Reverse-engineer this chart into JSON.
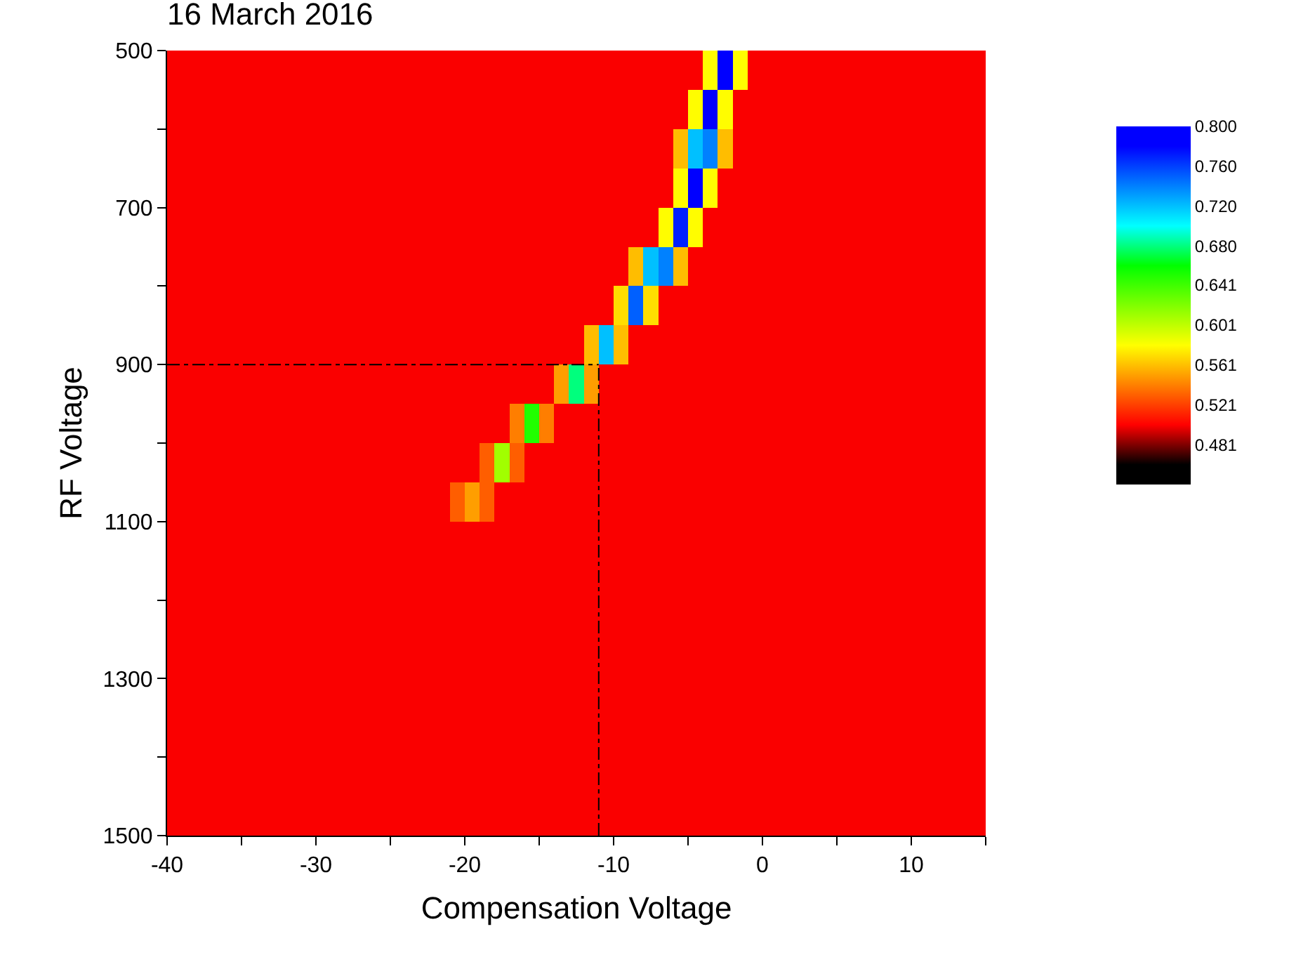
{
  "chart_data": {
    "type": "heatmap",
    "title": "16 March 2016",
    "xlabel": "Compensation Voltage",
    "ylabel": "RF Voltage",
    "x": [
      -39.5,
      -38.5,
      -37.5,
      -36.5,
      -35.5,
      -34.5,
      -33.5,
      -32.5,
      -31.5,
      -30.5,
      -29.5,
      -28.5,
      -27.5,
      -26.5,
      -25.5,
      -24.5,
      -23.5,
      -22.5,
      -21.5,
      -20.5,
      -19.5,
      -18.5,
      -17.5,
      -16.5,
      -15.5,
      -14.5,
      -13.5,
      -12.5,
      -11.5,
      -10.5,
      -9.5,
      -8.5,
      -7.5,
      -6.5,
      -5.5,
      -4.5,
      -3.5,
      -2.5,
      -1.5,
      -0.5,
      0.5,
      1.5,
      2.5,
      3.5,
      4.5,
      5.5,
      6.5,
      7.5,
      8.5,
      9.5,
      10.5,
      11.5,
      12.5,
      13.5,
      14.5
    ],
    "y": [
      525,
      575,
      625,
      675,
      725,
      775,
      825,
      875,
      925,
      975,
      1025,
      1075,
      1125,
      1175,
      1225,
      1275,
      1325,
      1375,
      1425,
      1475
    ],
    "xlim": [
      -40,
      15
    ],
    "xticks": [
      -40,
      {
        "value": -35,
        "label": null
      },
      -30,
      {
        "value": -25,
        "label": null
      },
      -20,
      {
        "value": -15,
        "label": null
      },
      -10,
      {
        "value": -5,
        "label": null
      },
      0,
      {
        "value": 5,
        "label": null
      },
      10,
      {
        "value": 15,
        "label": null
      }
    ],
    "ylim": [
      1500,
      500
    ],
    "yticks": [
      500,
      {
        "value": 600,
        "label": null
      },
      700,
      {
        "value": 800,
        "label": null
      },
      900,
      {
        "value": 1000,
        "label": null
      },
      1100,
      {
        "value": 1200,
        "label": null
      },
      1300,
      {
        "value": 1400,
        "label": null
      },
      1500
    ],
    "clim": [
      0.441,
      0.8
    ],
    "cticks": [
      0.481,
      0.521,
      0.561,
      0.601,
      0.641,
      {
        "value": 0.68,
        "label": "0.680"
      },
      {
        "value": 0.72,
        "label": "0.720"
      },
      {
        "value": 0.76,
        "label": "0.760"
      },
      {
        "value": 0.8,
        "label": "0.800"
      }
    ],
    "colors": [
      "#000000",
      "#ff0000",
      "#ff8000",
      "#ffff00",
      "#80ff00",
      "#00ff00",
      "#00ffff",
      "#0080ff",
      "#0000ff"
    ],
    "ref_lines": [
      {
        "axis": "y",
        "value": 900,
        "color": "#000000"
      },
      {
        "axis": "x",
        "value": -11,
        "color": "#000000"
      }
    ],
    "cells": [
      [
        0.5,
        0.5,
        0.5,
        0.5,
        0.5,
        0.5,
        0.5,
        0.5,
        0.5,
        0.5,
        0.5,
        0.5,
        0.5,
        0.5,
        0.5,
        0.5,
        0.5,
        0.5,
        0.5,
        0.5,
        0.5,
        0.5,
        0.5,
        0.5,
        0.5,
        0.5,
        0.5,
        0.5,
        0.5,
        0.5,
        0.5,
        0.5,
        0.5,
        0.5,
        0.5,
        0.5,
        0.58,
        0.78,
        0.58,
        0.5,
        0.5,
        0.5,
        0.5,
        0.5,
        0.5,
        0.5,
        0.5,
        0.5,
        0.5,
        0.5,
        0.5,
        0.5,
        0.5,
        0.5,
        0.5
      ],
      [
        0.5,
        0.5,
        0.5,
        0.5,
        0.5,
        0.5,
        0.5,
        0.5,
        0.5,
        0.5,
        0.5,
        0.5,
        0.5,
        0.5,
        0.5,
        0.5,
        0.5,
        0.5,
        0.5,
        0.5,
        0.5,
        0.5,
        0.5,
        0.5,
        0.5,
        0.5,
        0.5,
        0.5,
        0.5,
        0.5,
        0.5,
        0.5,
        0.5,
        0.5,
        0.5,
        0.58,
        0.78,
        0.58,
        0.5,
        0.5,
        0.5,
        0.5,
        0.5,
        0.5,
        0.5,
        0.5,
        0.5,
        0.5,
        0.5,
        0.5,
        0.5,
        0.5,
        0.5,
        0.5,
        0.5
      ],
      [
        0.5,
        0.5,
        0.5,
        0.5,
        0.5,
        0.5,
        0.5,
        0.5,
        0.5,
        0.5,
        0.5,
        0.5,
        0.5,
        0.5,
        0.5,
        0.5,
        0.5,
        0.5,
        0.5,
        0.5,
        0.5,
        0.5,
        0.5,
        0.5,
        0.5,
        0.5,
        0.5,
        0.5,
        0.5,
        0.5,
        0.5,
        0.5,
        0.5,
        0.5,
        0.56,
        0.72,
        0.74,
        0.56,
        0.5,
        0.5,
        0.5,
        0.5,
        0.5,
        0.5,
        0.5,
        0.5,
        0.5,
        0.5,
        0.5,
        0.5,
        0.5,
        0.5,
        0.5,
        0.5,
        0.5
      ],
      [
        0.5,
        0.5,
        0.5,
        0.5,
        0.5,
        0.5,
        0.5,
        0.5,
        0.5,
        0.5,
        0.5,
        0.5,
        0.5,
        0.5,
        0.5,
        0.5,
        0.5,
        0.5,
        0.5,
        0.5,
        0.5,
        0.5,
        0.5,
        0.5,
        0.5,
        0.5,
        0.5,
        0.5,
        0.5,
        0.5,
        0.5,
        0.5,
        0.5,
        0.5,
        0.58,
        0.78,
        0.58,
        0.5,
        0.5,
        0.5,
        0.5,
        0.5,
        0.5,
        0.5,
        0.5,
        0.5,
        0.5,
        0.5,
        0.5,
        0.5,
        0.5,
        0.5,
        0.5,
        0.5,
        0.5
      ],
      [
        0.5,
        0.5,
        0.5,
        0.5,
        0.5,
        0.5,
        0.5,
        0.5,
        0.5,
        0.5,
        0.5,
        0.5,
        0.5,
        0.5,
        0.5,
        0.5,
        0.5,
        0.5,
        0.5,
        0.5,
        0.5,
        0.5,
        0.5,
        0.5,
        0.5,
        0.5,
        0.5,
        0.5,
        0.5,
        0.5,
        0.5,
        0.5,
        0.5,
        0.58,
        0.77,
        0.58,
        0.5,
        0.5,
        0.5,
        0.5,
        0.5,
        0.5,
        0.5,
        0.5,
        0.5,
        0.5,
        0.5,
        0.5,
        0.5,
        0.5,
        0.5,
        0.5,
        0.5,
        0.5,
        0.5
      ],
      [
        0.5,
        0.5,
        0.5,
        0.5,
        0.5,
        0.5,
        0.5,
        0.5,
        0.5,
        0.5,
        0.5,
        0.5,
        0.5,
        0.5,
        0.5,
        0.5,
        0.5,
        0.5,
        0.5,
        0.5,
        0.5,
        0.5,
        0.5,
        0.5,
        0.5,
        0.5,
        0.5,
        0.5,
        0.5,
        0.5,
        0.5,
        0.56,
        0.72,
        0.74,
        0.56,
        0.5,
        0.5,
        0.5,
        0.5,
        0.5,
        0.5,
        0.5,
        0.5,
        0.5,
        0.5,
        0.5,
        0.5,
        0.5,
        0.5,
        0.5,
        0.5,
        0.5,
        0.5,
        0.5,
        0.5
      ],
      [
        0.5,
        0.5,
        0.5,
        0.5,
        0.5,
        0.5,
        0.5,
        0.5,
        0.5,
        0.5,
        0.5,
        0.5,
        0.5,
        0.5,
        0.5,
        0.5,
        0.5,
        0.5,
        0.5,
        0.5,
        0.5,
        0.5,
        0.5,
        0.5,
        0.5,
        0.5,
        0.5,
        0.5,
        0.5,
        0.5,
        0.57,
        0.75,
        0.57,
        0.5,
        0.5,
        0.5,
        0.5,
        0.5,
        0.5,
        0.5,
        0.5,
        0.5,
        0.5,
        0.5,
        0.5,
        0.5,
        0.5,
        0.5,
        0.5,
        0.5,
        0.5,
        0.5,
        0.5,
        0.5,
        0.5
      ],
      [
        0.5,
        0.5,
        0.5,
        0.5,
        0.5,
        0.5,
        0.5,
        0.5,
        0.5,
        0.5,
        0.5,
        0.5,
        0.5,
        0.5,
        0.5,
        0.5,
        0.5,
        0.5,
        0.5,
        0.5,
        0.5,
        0.5,
        0.5,
        0.5,
        0.5,
        0.5,
        0.5,
        0.5,
        0.56,
        0.72,
        0.56,
        0.5,
        0.5,
        0.5,
        0.5,
        0.5,
        0.5,
        0.5,
        0.5,
        0.5,
        0.5,
        0.5,
        0.5,
        0.5,
        0.5,
        0.5,
        0.5,
        0.5,
        0.5,
        0.5,
        0.5,
        0.5,
        0.5,
        0.5,
        0.5
      ],
      [
        0.5,
        0.5,
        0.5,
        0.5,
        0.5,
        0.5,
        0.5,
        0.5,
        0.5,
        0.5,
        0.5,
        0.5,
        0.5,
        0.5,
        0.5,
        0.5,
        0.5,
        0.5,
        0.5,
        0.5,
        0.5,
        0.5,
        0.5,
        0.5,
        0.5,
        0.5,
        0.55,
        0.68,
        0.55,
        0.5,
        0.5,
        0.5,
        0.5,
        0.5,
        0.5,
        0.5,
        0.5,
        0.5,
        0.5,
        0.5,
        0.5,
        0.5,
        0.5,
        0.5,
        0.5,
        0.5,
        0.5,
        0.5,
        0.5,
        0.5,
        0.5,
        0.5,
        0.5,
        0.5,
        0.5
      ],
      [
        0.5,
        0.5,
        0.5,
        0.5,
        0.5,
        0.5,
        0.5,
        0.5,
        0.5,
        0.5,
        0.5,
        0.5,
        0.5,
        0.5,
        0.5,
        0.5,
        0.5,
        0.5,
        0.5,
        0.5,
        0.5,
        0.5,
        0.5,
        0.54,
        0.65,
        0.54,
        0.5,
        0.5,
        0.5,
        0.5,
        0.5,
        0.5,
        0.5,
        0.5,
        0.5,
        0.5,
        0.5,
        0.5,
        0.5,
        0.5,
        0.5,
        0.5,
        0.5,
        0.5,
        0.5,
        0.5,
        0.5,
        0.5,
        0.5,
        0.5,
        0.5,
        0.5,
        0.5,
        0.5,
        0.5
      ],
      [
        0.5,
        0.5,
        0.5,
        0.5,
        0.5,
        0.5,
        0.5,
        0.5,
        0.5,
        0.5,
        0.5,
        0.5,
        0.5,
        0.5,
        0.5,
        0.5,
        0.5,
        0.5,
        0.5,
        0.5,
        0.5,
        0.53,
        0.61,
        0.53,
        0.5,
        0.5,
        0.5,
        0.5,
        0.5,
        0.5,
        0.5,
        0.5,
        0.5,
        0.5,
        0.5,
        0.5,
        0.5,
        0.5,
        0.5,
        0.5,
        0.5,
        0.5,
        0.5,
        0.5,
        0.5,
        0.5,
        0.5,
        0.5,
        0.5,
        0.5,
        0.5,
        0.5,
        0.5,
        0.5,
        0.5
      ],
      [
        0.5,
        0.5,
        0.5,
        0.5,
        0.5,
        0.5,
        0.5,
        0.5,
        0.5,
        0.5,
        0.5,
        0.5,
        0.5,
        0.5,
        0.5,
        0.5,
        0.5,
        0.5,
        0.5,
        0.53,
        0.55,
        0.53,
        0.5,
        0.5,
        0.5,
        0.5,
        0.5,
        0.5,
        0.5,
        0.5,
        0.5,
        0.5,
        0.5,
        0.5,
        0.5,
        0.5,
        0.5,
        0.5,
        0.5,
        0.5,
        0.5,
        0.5,
        0.5,
        0.5,
        0.5,
        0.5,
        0.5,
        0.5,
        0.5,
        0.5,
        0.5,
        0.5,
        0.5,
        0.5,
        0.5
      ],
      [
        0.5,
        0.5,
        0.5,
        0.5,
        0.5,
        0.5,
        0.5,
        0.5,
        0.5,
        0.5,
        0.5,
        0.5,
        0.5,
        0.5,
        0.5,
        0.5,
        0.5,
        0.5,
        0.5,
        0.5,
        0.5,
        0.5,
        0.5,
        0.5,
        0.5,
        0.5,
        0.5,
        0.5,
        0.5,
        0.5,
        0.5,
        0.5,
        0.5,
        0.5,
        0.5,
        0.5,
        0.5,
        0.5,
        0.5,
        0.5,
        0.5,
        0.5,
        0.5,
        0.5,
        0.5,
        0.5,
        0.5,
        0.5,
        0.5,
        0.5,
        0.5,
        0.5,
        0.5,
        0.5,
        0.5
      ],
      [
        0.5,
        0.5,
        0.5,
        0.5,
        0.5,
        0.5,
        0.5,
        0.5,
        0.5,
        0.5,
        0.5,
        0.5,
        0.5,
        0.5,
        0.5,
        0.5,
        0.5,
        0.5,
        0.5,
        0.5,
        0.5,
        0.5,
        0.5,
        0.5,
        0.5,
        0.5,
        0.5,
        0.5,
        0.5,
        0.5,
        0.5,
        0.5,
        0.5,
        0.5,
        0.5,
        0.5,
        0.5,
        0.5,
        0.5,
        0.5,
        0.5,
        0.5,
        0.5,
        0.5,
        0.5,
        0.5,
        0.5,
        0.5,
        0.5,
        0.5,
        0.5,
        0.5,
        0.5,
        0.5,
        0.5
      ],
      [
        0.5,
        0.5,
        0.5,
        0.5,
        0.5,
        0.5,
        0.5,
        0.5,
        0.5,
        0.5,
        0.5,
        0.5,
        0.5,
        0.5,
        0.5,
        0.5,
        0.5,
        0.5,
        0.5,
        0.5,
        0.5,
        0.5,
        0.5,
        0.5,
        0.5,
        0.5,
        0.5,
        0.5,
        0.5,
        0.5,
        0.5,
        0.5,
        0.5,
        0.5,
        0.5,
        0.5,
        0.5,
        0.5,
        0.5,
        0.5,
        0.5,
        0.5,
        0.5,
        0.5,
        0.5,
        0.5,
        0.5,
        0.5,
        0.5,
        0.5,
        0.5,
        0.5,
        0.5,
        0.5,
        0.5
      ],
      [
        0.5,
        0.5,
        0.5,
        0.5,
        0.5,
        0.5,
        0.5,
        0.5,
        0.5,
        0.5,
        0.5,
        0.5,
        0.5,
        0.5,
        0.5,
        0.5,
        0.5,
        0.5,
        0.5,
        0.5,
        0.5,
        0.5,
        0.5,
        0.5,
        0.5,
        0.5,
        0.5,
        0.5,
        0.5,
        0.5,
        0.5,
        0.5,
        0.5,
        0.5,
        0.5,
        0.5,
        0.5,
        0.5,
        0.5,
        0.5,
        0.5,
        0.5,
        0.5,
        0.5,
        0.5,
        0.5,
        0.5,
        0.5,
        0.5,
        0.5,
        0.5,
        0.5,
        0.5,
        0.5,
        0.5
      ],
      [
        0.5,
        0.5,
        0.5,
        0.5,
        0.5,
        0.5,
        0.5,
        0.5,
        0.5,
        0.5,
        0.5,
        0.5,
        0.5,
        0.5,
        0.5,
        0.5,
        0.5,
        0.5,
        0.5,
        0.5,
        0.5,
        0.5,
        0.5,
        0.5,
        0.5,
        0.5,
        0.5,
        0.5,
        0.5,
        0.5,
        0.5,
        0.5,
        0.5,
        0.5,
        0.5,
        0.5,
        0.5,
        0.5,
        0.5,
        0.5,
        0.5,
        0.5,
        0.5,
        0.5,
        0.5,
        0.5,
        0.5,
        0.5,
        0.5,
        0.5,
        0.5,
        0.5,
        0.5,
        0.5,
        0.5
      ],
      [
        0.5,
        0.5,
        0.5,
        0.5,
        0.5,
        0.5,
        0.5,
        0.5,
        0.5,
        0.5,
        0.5,
        0.5,
        0.5,
        0.5,
        0.5,
        0.5,
        0.5,
        0.5,
        0.5,
        0.5,
        0.5,
        0.5,
        0.5,
        0.5,
        0.5,
        0.5,
        0.5,
        0.5,
        0.5,
        0.5,
        0.5,
        0.5,
        0.5,
        0.5,
        0.5,
        0.5,
        0.5,
        0.5,
        0.5,
        0.5,
        0.5,
        0.5,
        0.5,
        0.5,
        0.5,
        0.5,
        0.5,
        0.5,
        0.5,
        0.5,
        0.5,
        0.5,
        0.5,
        0.5,
        0.5
      ],
      [
        0.5,
        0.5,
        0.5,
        0.5,
        0.5,
        0.5,
        0.5,
        0.5,
        0.5,
        0.5,
        0.5,
        0.5,
        0.5,
        0.5,
        0.5,
        0.5,
        0.5,
        0.5,
        0.5,
        0.5,
        0.5,
        0.5,
        0.5,
        0.5,
        0.5,
        0.5,
        0.5,
        0.5,
        0.5,
        0.5,
        0.5,
        0.5,
        0.5,
        0.5,
        0.5,
        0.5,
        0.5,
        0.5,
        0.5,
        0.5,
        0.5,
        0.5,
        0.5,
        0.5,
        0.5,
        0.5,
        0.5,
        0.5,
        0.5,
        0.5,
        0.5,
        0.5,
        0.5,
        0.5,
        0.5
      ],
      [
        0.5,
        0.5,
        0.5,
        0.5,
        0.5,
        0.5,
        0.5,
        0.5,
        0.5,
        0.5,
        0.5,
        0.5,
        0.5,
        0.5,
        0.5,
        0.5,
        0.5,
        0.5,
        0.5,
        0.5,
        0.5,
        0.5,
        0.5,
        0.5,
        0.5,
        0.5,
        0.5,
        0.5,
        0.5,
        0.5,
        0.5,
        0.5,
        0.5,
        0.5,
        0.5,
        0.5,
        0.5,
        0.5,
        0.5,
        0.5,
        0.5,
        0.5,
        0.5,
        0.5,
        0.5,
        0.5,
        0.5,
        0.5,
        0.5,
        0.5,
        0.5,
        0.5,
        0.5,
        0.5,
        0.5
      ]
    ]
  }
}
